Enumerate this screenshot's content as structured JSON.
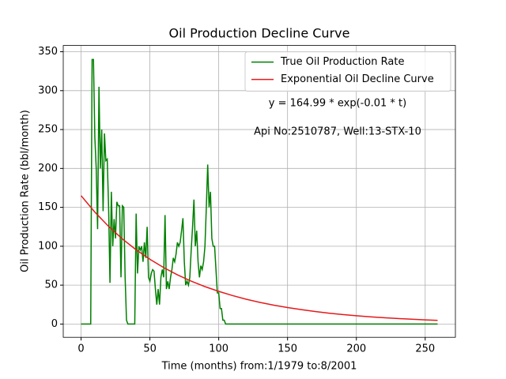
{
  "chart_data": {
    "type": "line",
    "title": "Oil Production Decline Curve",
    "xlabel": "Time (months) from:1/1979 to:8/2001",
    "ylabel": "Oil Production Rate (bbl/month)",
    "annotations": [
      "y = 164.99 * exp(-0.01 * t)",
      "Api No:2510787, Well:13-STX-10"
    ],
    "xlim": [
      -12.95,
      271.95
    ],
    "ylim": [
      -17.05,
      358.05
    ],
    "xticks": [
      0,
      50,
      100,
      150,
      200,
      250
    ],
    "yticks": [
      0,
      50,
      100,
      150,
      200,
      250,
      300,
      350
    ],
    "grid": true,
    "legend": "upper right",
    "series": [
      {
        "name": "True Oil Production Rate",
        "color": "#008000",
        "x": [
          0,
          1,
          2,
          3,
          4,
          5,
          6,
          7,
          8,
          9,
          10,
          11,
          12,
          13,
          14,
          15,
          16,
          17,
          18,
          19,
          20,
          21,
          22,
          23,
          24,
          25,
          26,
          27,
          28,
          29,
          30,
          31,
          32,
          33,
          34,
          35,
          36,
          37,
          38,
          39,
          40,
          41,
          42,
          43,
          44,
          45,
          46,
          47,
          48,
          49,
          50,
          51,
          52,
          53,
          54,
          55,
          56,
          57,
          58,
          59,
          60,
          61,
          62,
          63,
          64,
          65,
          66,
          67,
          68,
          69,
          70,
          71,
          72,
          73,
          74,
          75,
          76,
          77,
          78,
          79,
          80,
          81,
          82,
          83,
          84,
          85,
          86,
          87,
          88,
          89,
          90,
          91,
          92,
          93,
          94,
          95,
          96,
          97,
          98,
          99,
          100,
          101,
          102,
          103,
          104,
          105,
          259
        ],
        "values": [
          0,
          0,
          0,
          0,
          0,
          0,
          0,
          0,
          340,
          340,
          240,
          200,
          122,
          305,
          200,
          250,
          145,
          245,
          210,
          212,
          150,
          53,
          170,
          100,
          135,
          110,
          157,
          152,
          152,
          60,
          152,
          150,
          60,
          5,
          0,
          0,
          0,
          0,
          0,
          0,
          142,
          65,
          100,
          95,
          100,
          80,
          105,
          85,
          125,
          60,
          55,
          65,
          70,
          68,
          45,
          25,
          45,
          25,
          60,
          70,
          60,
          140,
          45,
          55,
          45,
          60,
          70,
          85,
          80,
          90,
          105,
          100,
          105,
          120,
          136,
          80,
          50,
          55,
          50,
          60,
          95,
          125,
          160,
          100,
          120,
          80,
          60,
          75,
          70,
          80,
          100,
          150,
          205,
          150,
          170,
          110,
          100,
          100,
          70,
          40,
          40,
          20,
          20,
          5,
          5,
          0,
          0
        ]
      },
      {
        "name": "Exponential Oil Decline Curve",
        "color": "#e41a1c",
        "x": [
          0,
          10,
          20,
          30,
          40,
          50,
          60,
          70,
          80,
          90,
          100,
          110,
          120,
          130,
          140,
          150,
          160,
          170,
          180,
          190,
          200,
          210,
          220,
          230,
          240,
          250,
          259
        ],
        "values": [
          165,
          143.9,
          125.5,
          109.4,
          95.4,
          83.2,
          72.6,
          63.3,
          55.2,
          48.1,
          42.0,
          36.6,
          31.9,
          27.8,
          24.3,
          21.2,
          18.5,
          16.1,
          14.0,
          12.2,
          10.7,
          9.3,
          8.1,
          7.1,
          6.2,
          5.4,
          4.7
        ]
      }
    ]
  }
}
